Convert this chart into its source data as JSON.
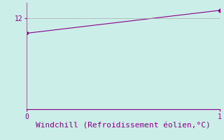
{
  "x": [
    0,
    1
  ],
  "y": [
    10,
    13
  ],
  "line_color": "#880088",
  "marker": "D",
  "marker_size": 3,
  "background_color": "#cceee8",
  "grid_color": "#aaaaaa",
  "spine_color": "#880088",
  "tick_color": "#880088",
  "label_color": "#880088",
  "xlabel": "Windchill (Refroidissement éolien,°C)",
  "xlabel_fontsize": 8,
  "ytick_labels": [
    "12"
  ],
  "ytick_values": [
    12
  ],
  "xtick_labels": [
    "0",
    "1"
  ],
  "xtick_values": [
    0,
    1
  ],
  "xlim": [
    0,
    1.0
  ],
  "ylim": [
    0,
    14
  ],
  "figsize": [
    3.2,
    2.0
  ],
  "dpi": 100
}
